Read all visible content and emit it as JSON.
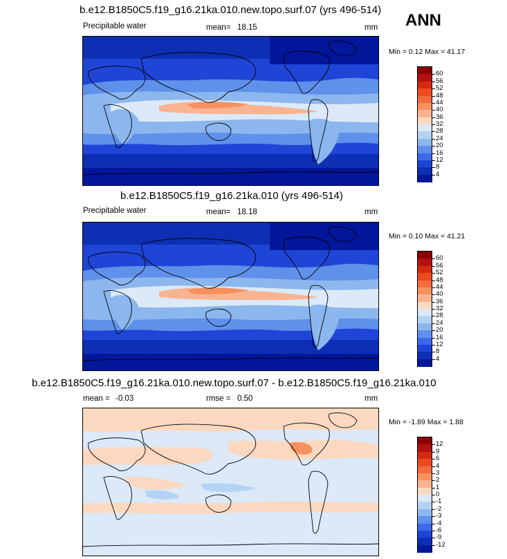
{
  "header": {
    "season": "ANN"
  },
  "panels": [
    {
      "title": "b.e12.B1850C5.f19_g16.21ka.010.new.topo.surf.07 (yrs 496-514)",
      "variable": "Precipitable water",
      "stat_label": "mean=",
      "stat_value": "18.15",
      "units": "mm",
      "minmax_text": "Min =  0.12 Max =  41.17"
    },
    {
      "title": "b.e12.B1850C5.f19_g16.21ka.010 (yrs 496-514)",
      "variable": "Precipitable water",
      "stat_label": "mean=",
      "stat_value": "18.18",
      "units": "mm",
      "minmax_text": "Min =  0.10 Max =  41.21"
    },
    {
      "title": "b.e12.B1850C5.f19_g16.21ka.010.new.topo.surf.07 - b.e12.B1850C5.f19_g16.21ka.010",
      "stat_label": "mean =",
      "stat_value": "-0.03",
      "rmse_label": "rmse =",
      "rmse_value": "0.50",
      "units": "mm",
      "minmax_text": "Min = -1.89 Max =  1.88"
    }
  ],
  "chart_data": [
    {
      "type": "heatmap",
      "title": "b.e12.B1850C5.f19_g16.21ka.010.new.topo.surf.07 (yrs 496-514)",
      "variable": "Precipitable water",
      "units": "mm",
      "mean": 18.15,
      "min": 0.12,
      "max": 41.17,
      "colorbar_levels": [
        "60",
        "56",
        "52",
        "48",
        "44",
        "40",
        "36",
        "32",
        "28",
        "24",
        "20",
        "16",
        "12",
        "8",
        "4"
      ],
      "colors": [
        "#8b0000",
        "#b31212",
        "#d42a10",
        "#ec4a20",
        "#f36c3e",
        "#f7905f",
        "#f8b490",
        "#fbd9c0",
        "#dbe9f9",
        "#b4d2f4",
        "#8cb6ee",
        "#5f90ea",
        "#3a6ae4",
        "#1f45d6",
        "#0d2fb3",
        "#02179a"
      ]
    },
    {
      "type": "heatmap",
      "title": "b.e12.B1850C5.f19_g16.21ka.010 (yrs 496-514)",
      "variable": "Precipitable water",
      "units": "mm",
      "mean": 18.18,
      "min": 0.1,
      "max": 41.21,
      "colorbar_levels": [
        "60",
        "56",
        "52",
        "48",
        "44",
        "40",
        "36",
        "32",
        "28",
        "24",
        "20",
        "16",
        "12",
        "8",
        "4"
      ],
      "colors": [
        "#8b0000",
        "#b31212",
        "#d42a10",
        "#ec4a20",
        "#f36c3e",
        "#f7905f",
        "#f8b490",
        "#fbd9c0",
        "#dbe9f9",
        "#b4d2f4",
        "#8cb6ee",
        "#5f90ea",
        "#3a6ae4",
        "#1f45d6",
        "#0d2fb3",
        "#02179a"
      ]
    },
    {
      "type": "heatmap",
      "title": "b.e12.B1850C5.f19_g16.21ka.010.new.topo.surf.07 - b.e12.B1850C5.f19_g16.21ka.010",
      "units": "mm",
      "mean": -0.03,
      "rmse": 0.5,
      "min": -1.89,
      "max": 1.88,
      "colorbar_levels": [
        "12",
        "9",
        "6",
        "4",
        "3",
        "2",
        "1",
        "0",
        "-1",
        "-2",
        "-3",
        "-4",
        "-6",
        "-9",
        "-12"
      ],
      "colors": [
        "#8b0000",
        "#b31212",
        "#d42a10",
        "#ec4a20",
        "#f36c3e",
        "#f7905f",
        "#f8b490",
        "#fbd9c0",
        "#dbe9f9",
        "#b4d2f4",
        "#8cb6ee",
        "#5f90ea",
        "#3a6ae4",
        "#1f45d6",
        "#0d2fb3",
        "#02179a"
      ]
    }
  ]
}
